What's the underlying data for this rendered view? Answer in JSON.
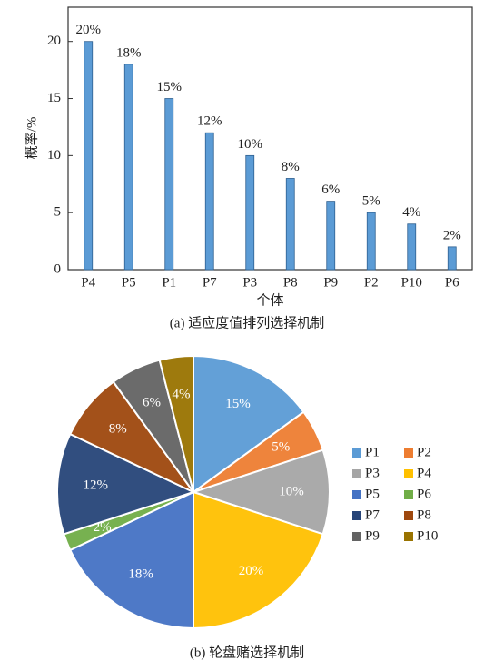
{
  "chart_data": [
    {
      "type": "bar",
      "categories": [
        "P4",
        "P5",
        "P1",
        "P7",
        "P3",
        "P8",
        "P9",
        "P2",
        "P10",
        "P6"
      ],
      "values": [
        20,
        18,
        15,
        12,
        10,
        8,
        6,
        5,
        4,
        2
      ],
      "value_labels": [
        "20%",
        "18%",
        "15%",
        "12%",
        "10%",
        "8%",
        "6%",
        "5%",
        "4%",
        "2%"
      ],
      "color": "#5b9bd5",
      "ylim": [
        0,
        23
      ],
      "yticks": [
        0,
        5,
        10,
        15,
        20
      ],
      "ylabel": "概率/%",
      "xlabel": "个体",
      "caption": "(a) 适应度值排列选择机制"
    },
    {
      "type": "pie",
      "categories": [
        "P1",
        "P2",
        "P3",
        "P4",
        "P5",
        "P6",
        "P7",
        "P8",
        "P9",
        "P10"
      ],
      "values": [
        15,
        5,
        10,
        20,
        18,
        2,
        12,
        8,
        6,
        4
      ],
      "value_labels": [
        "15%",
        "5%",
        "10%",
        "20%",
        "18%",
        "2%",
        "12%",
        "8%",
        "6%",
        "4%"
      ],
      "colors": [
        "#5b9bd5",
        "#ed7d31",
        "#a5a5a5",
        "#ffc000",
        "#4472c4",
        "#70ad47",
        "#264478",
        "#9e480e",
        "#636363",
        "#997300"
      ],
      "legend": "right",
      "caption": "(b) 轮盘赌选择机制"
    }
  ]
}
